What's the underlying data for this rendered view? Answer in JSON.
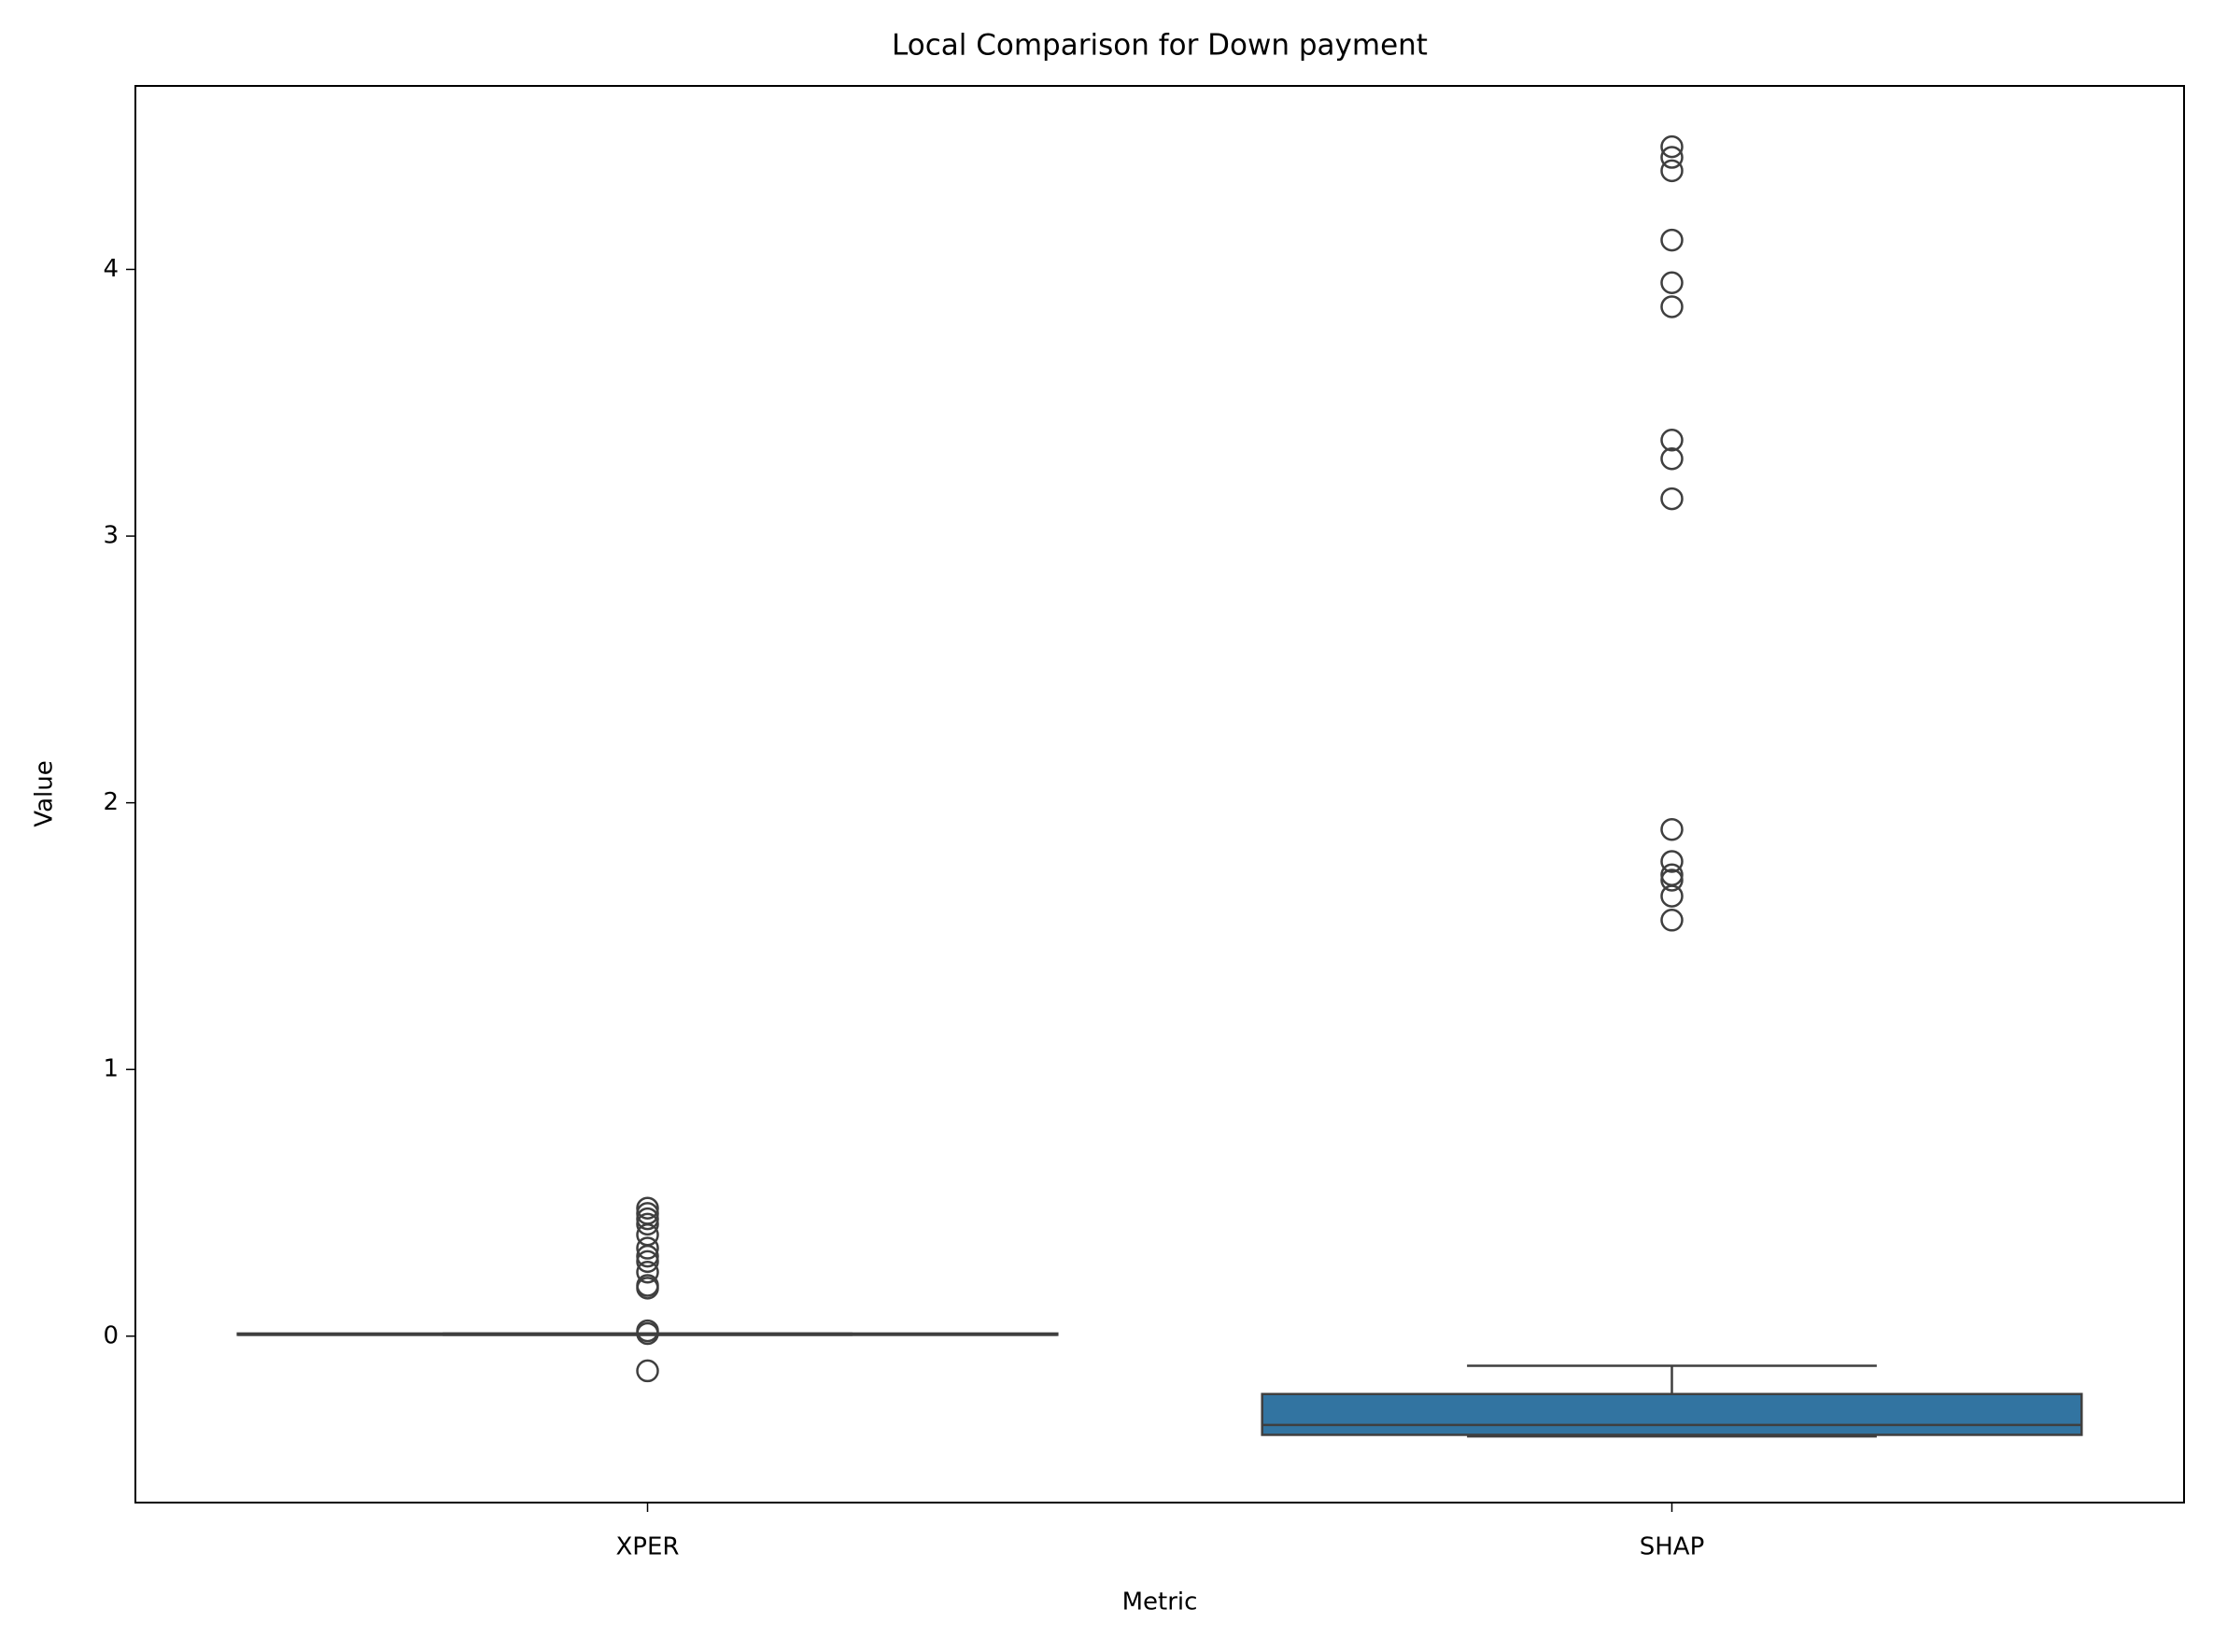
{
  "chart_data": {
    "type": "box",
    "title": "Local Comparison for Down payment",
    "x_label": "Metric",
    "y_label": "Value",
    "categories": [
      "XPER",
      "SHAP"
    ],
    "color": "#3274a1",
    "boxes": [
      {
        "whislo": 0.005,
        "q1": 0.005,
        "med": 0.005,
        "q3": 0.01,
        "whishi": 0.01,
        "fliers": [
          0.48,
          0.46,
          0.44,
          0.42,
          0.38,
          0.33,
          0.3,
          0.28,
          0.24,
          0.19,
          0.18,
          0.02,
          0.01,
          -0.13
        ]
      },
      {
        "whislo": -0.376,
        "q1": -0.37,
        "med": -0.333,
        "q3": -0.217,
        "whishi": -0.111,
        "fliers": [
          4.46,
          4.42,
          4.37,
          4.11,
          3.95,
          3.86,
          3.36,
          3.29,
          3.14,
          1.9,
          1.78,
          1.73,
          1.71,
          1.65,
          1.56
        ]
      }
    ],
    "ylim": [
      -0.624,
      4.688
    ],
    "yticks": [
      0,
      1,
      2,
      3,
      4
    ]
  }
}
